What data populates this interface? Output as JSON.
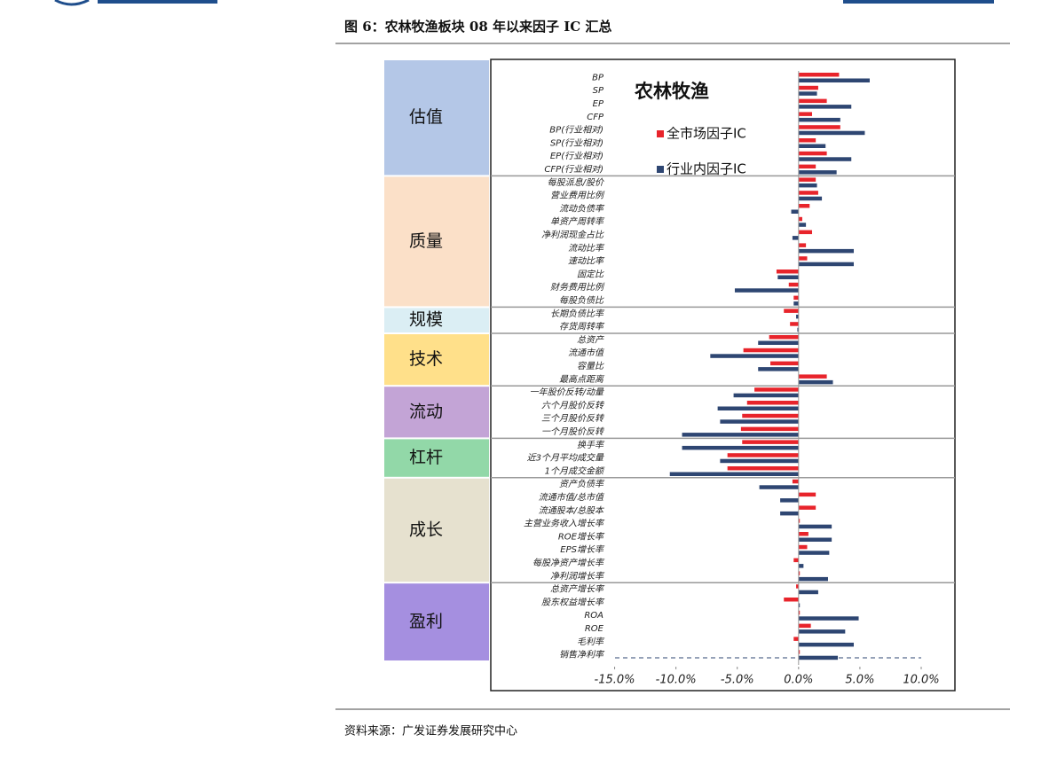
{
  "caption": "图 6：农林牧渔板块 08 年以来因子 IC 汇总",
  "source": "资料来源：广发证券发展研究中心",
  "chart_data": {
    "type": "bar",
    "orientation": "horizontal",
    "title": "农林牧渔",
    "groups": [
      {
        "name": "估值",
        "color": "#b4c7e7",
        "categories": [
          "BP",
          "SP",
          "EP",
          "CFP",
          "BP(行业相对)",
          "SP(行业相对)",
          "EP(行业相对)",
          "CFP(行业相对)"
        ]
      },
      {
        "name": "质量",
        "color": "#fbe0c8",
        "categories": [
          "每股派息/股价",
          "营业费用比例",
          "流动负债率",
          "单资产周转率",
          "净利润现金占比",
          "流动比率",
          "速动比率",
          "固定比",
          "财务费用比例",
          "每股负债比"
        ]
      },
      {
        "name": "规模",
        "color": "#dbeef4",
        "categories": [
          "长期负债比率",
          "存货周转率"
        ]
      },
      {
        "name": "技术",
        "color": "#ffe08a",
        "categories": [
          "总资产",
          "流通市值",
          "容量比",
          "最高点距离"
        ]
      },
      {
        "name": "流动",
        "color": "#c3a4d6",
        "categories": [
          "一年股价反转/动量",
          "六个月股价反转",
          "三个月股价反转",
          "一个月股价反转"
        ]
      },
      {
        "name": "杠杆",
        "color": "#92d8a8",
        "categories": [
          "换手率",
          "近3个月平均成交量",
          "1个月成交金额"
        ]
      },
      {
        "name": "成长",
        "color": "#e6e1cf",
        "categories": [
          "资产负债率",
          "流通市值/总市值",
          "流通股本/总股本",
          "主营业务收入增长率",
          "ROE增长率",
          "EPS增长率",
          "每股净资产增长率",
          "净利润增长率"
        ]
      },
      {
        "name": "盈利",
        "color": "#a58fe0",
        "categories": [
          "总资产增长率",
          "股东权益增长率",
          "ROA",
          "ROE",
          "毛利率",
          "销售净利率"
        ]
      }
    ],
    "series": [
      {
        "name": "全市场因子IC",
        "color": "#e8242b",
        "values": [
          3.3,
          1.6,
          2.3,
          1.1,
          3.4,
          1.4,
          2.3,
          1.4,
          1.4,
          1.6,
          0.9,
          0.3,
          1.1,
          0.6,
          0.7,
          -1.8,
          -0.8,
          -0.4,
          -1.2,
          -0.7,
          -2.4,
          -4.5,
          -2.3,
          2.3,
          -3.6,
          -4.2,
          -4.6,
          -4.7,
          -4.6,
          -5.8,
          -5.8,
          -0.5,
          1.4,
          1.4,
          0.1,
          0.8,
          0.7,
          -0.4,
          0.1,
          -0.2,
          -1.2,
          0.1,
          1.0,
          -0.4,
          0.1
        ]
      },
      {
        "name": "行业内因子IC",
        "color": "#2e4672",
        "values": [
          5.8,
          1.5,
          4.3,
          3.4,
          5.4,
          2.2,
          4.3,
          3.1,
          1.5,
          1.9,
          -0.6,
          0.6,
          -0.5,
          4.5,
          4.5,
          -1.7,
          -5.2,
          -0.4,
          -0.2,
          -0.1,
          -3.3,
          -7.2,
          -3.3,
          2.8,
          -5.3,
          -6.6,
          -6.4,
          -9.5,
          -9.5,
          -6.4,
          -10.5,
          -3.2,
          -1.5,
          -1.5,
          2.7,
          2.7,
          2.5,
          0.4,
          2.4,
          1.6,
          0.1,
          4.9,
          3.8,
          4.5,
          3.2
        ]
      }
    ],
    "xlim": [
      -25.1,
      12.75
    ],
    "xticks": [
      {
        "value": -15,
        "label": "-15.0%"
      },
      {
        "value": -10,
        "label": "-10.0%"
      },
      {
        "value": -5,
        "label": "-5.0%"
      },
      {
        "value": 0,
        "label": "0.0%"
      },
      {
        "value": 5,
        "label": "5.0%"
      },
      {
        "value": 10,
        "label": "10.0%"
      }
    ]
  }
}
